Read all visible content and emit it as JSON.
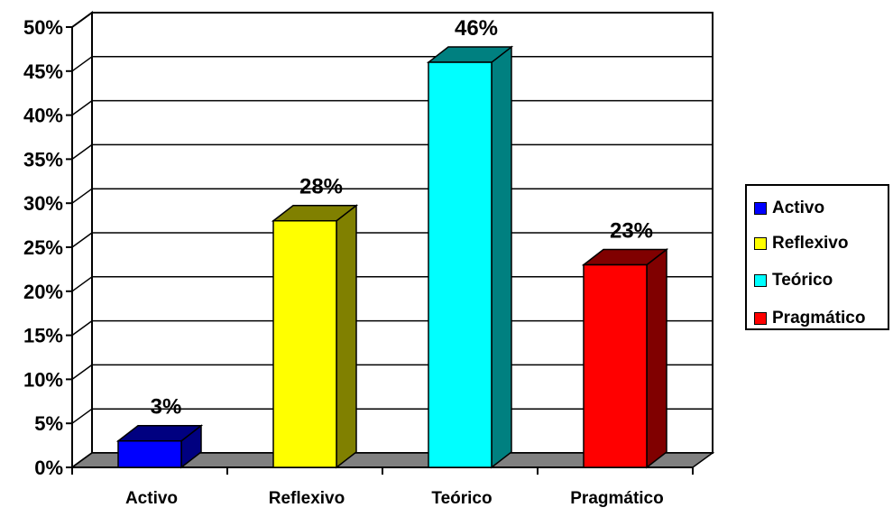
{
  "chart_data": {
    "type": "bar",
    "style": "3d-column",
    "categories": [
      "Activo",
      "Reflexivo",
      "Teórico",
      "Pragmático"
    ],
    "values": [
      3,
      28,
      46,
      23
    ],
    "data_labels": [
      "3%",
      "28%",
      "46%",
      "23%"
    ],
    "ylim": [
      0,
      50
    ],
    "ytick_values": [
      0,
      5,
      10,
      15,
      20,
      25,
      30,
      35,
      40,
      45,
      50
    ],
    "ytick_labels": [
      "0%",
      "5%",
      "10%",
      "15%",
      "20%",
      "25%",
      "30%",
      "35%",
      "40%",
      "45%",
      "50%"
    ],
    "grid": true,
    "legend_position": "right",
    "colors": {
      "Activo": {
        "front": "#0000ff",
        "side": "#000080"
      },
      "Reflexivo": {
        "front": "#ffff00",
        "side": "#808000"
      },
      "Teórico": {
        "front": "#00ffff",
        "side": "#008080"
      },
      "Pragmático": {
        "front": "#ff0000",
        "side": "#800000"
      }
    },
    "floor_color": "#808080"
  },
  "legend": {
    "items": [
      {
        "label": "Activo",
        "color": "#0000ff"
      },
      {
        "label": "Reflexivo",
        "color": "#ffff00"
      },
      {
        "label": "Teórico",
        "color": "#00ffff"
      },
      {
        "label": "Pragmático",
        "color": "#ff0000"
      }
    ]
  }
}
